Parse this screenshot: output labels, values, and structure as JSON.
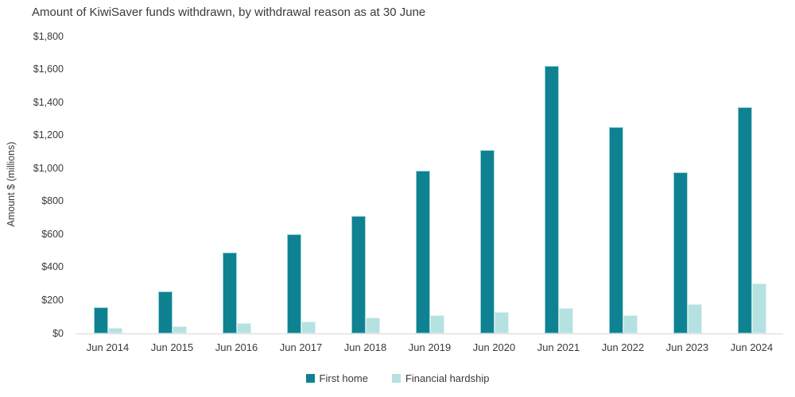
{
  "chart_data": {
    "type": "bar",
    "title": "Amount of KiwiSaver funds withdrawn, by withdrawal reason as at 30 June",
    "ylabel": "Amount $ (millions)",
    "xlabel": "",
    "ylim": [
      0,
      1800
    ],
    "ytick_step": 200,
    "ytick_labels": [
      "$0",
      "$200",
      "$400",
      "$600",
      "$800",
      "$1,000",
      "$1,200",
      "$1,400",
      "$1,600",
      "$1,800"
    ],
    "grid": false,
    "legend_position": "bottom-center",
    "categories": [
      "Jun 2014",
      "Jun 2015",
      "Jun 2016",
      "Jun 2017",
      "Jun 2018",
      "Jun 2019",
      "Jun 2020",
      "Jun 2021",
      "Jun 2022",
      "Jun 2023",
      "Jun 2024"
    ],
    "series": [
      {
        "name": "First home",
        "color": "#0F8291",
        "border_color": "#9ED3DA",
        "values": [
          160,
          256,
          492,
          602,
          713,
          986,
          1110,
          1620,
          1250,
          977,
          1372
        ]
      },
      {
        "name": "Financial hardship",
        "color": "#B5E1E1",
        "border_color": "#DCF0F1",
        "values": [
          35,
          45,
          62,
          70,
          97,
          112,
          130,
          152,
          113,
          178,
          302
        ]
      }
    ]
  },
  "colors": {
    "text": "#3A3A3A",
    "axis_line": "#D9D9D9",
    "background": "#FFFFFF"
  }
}
